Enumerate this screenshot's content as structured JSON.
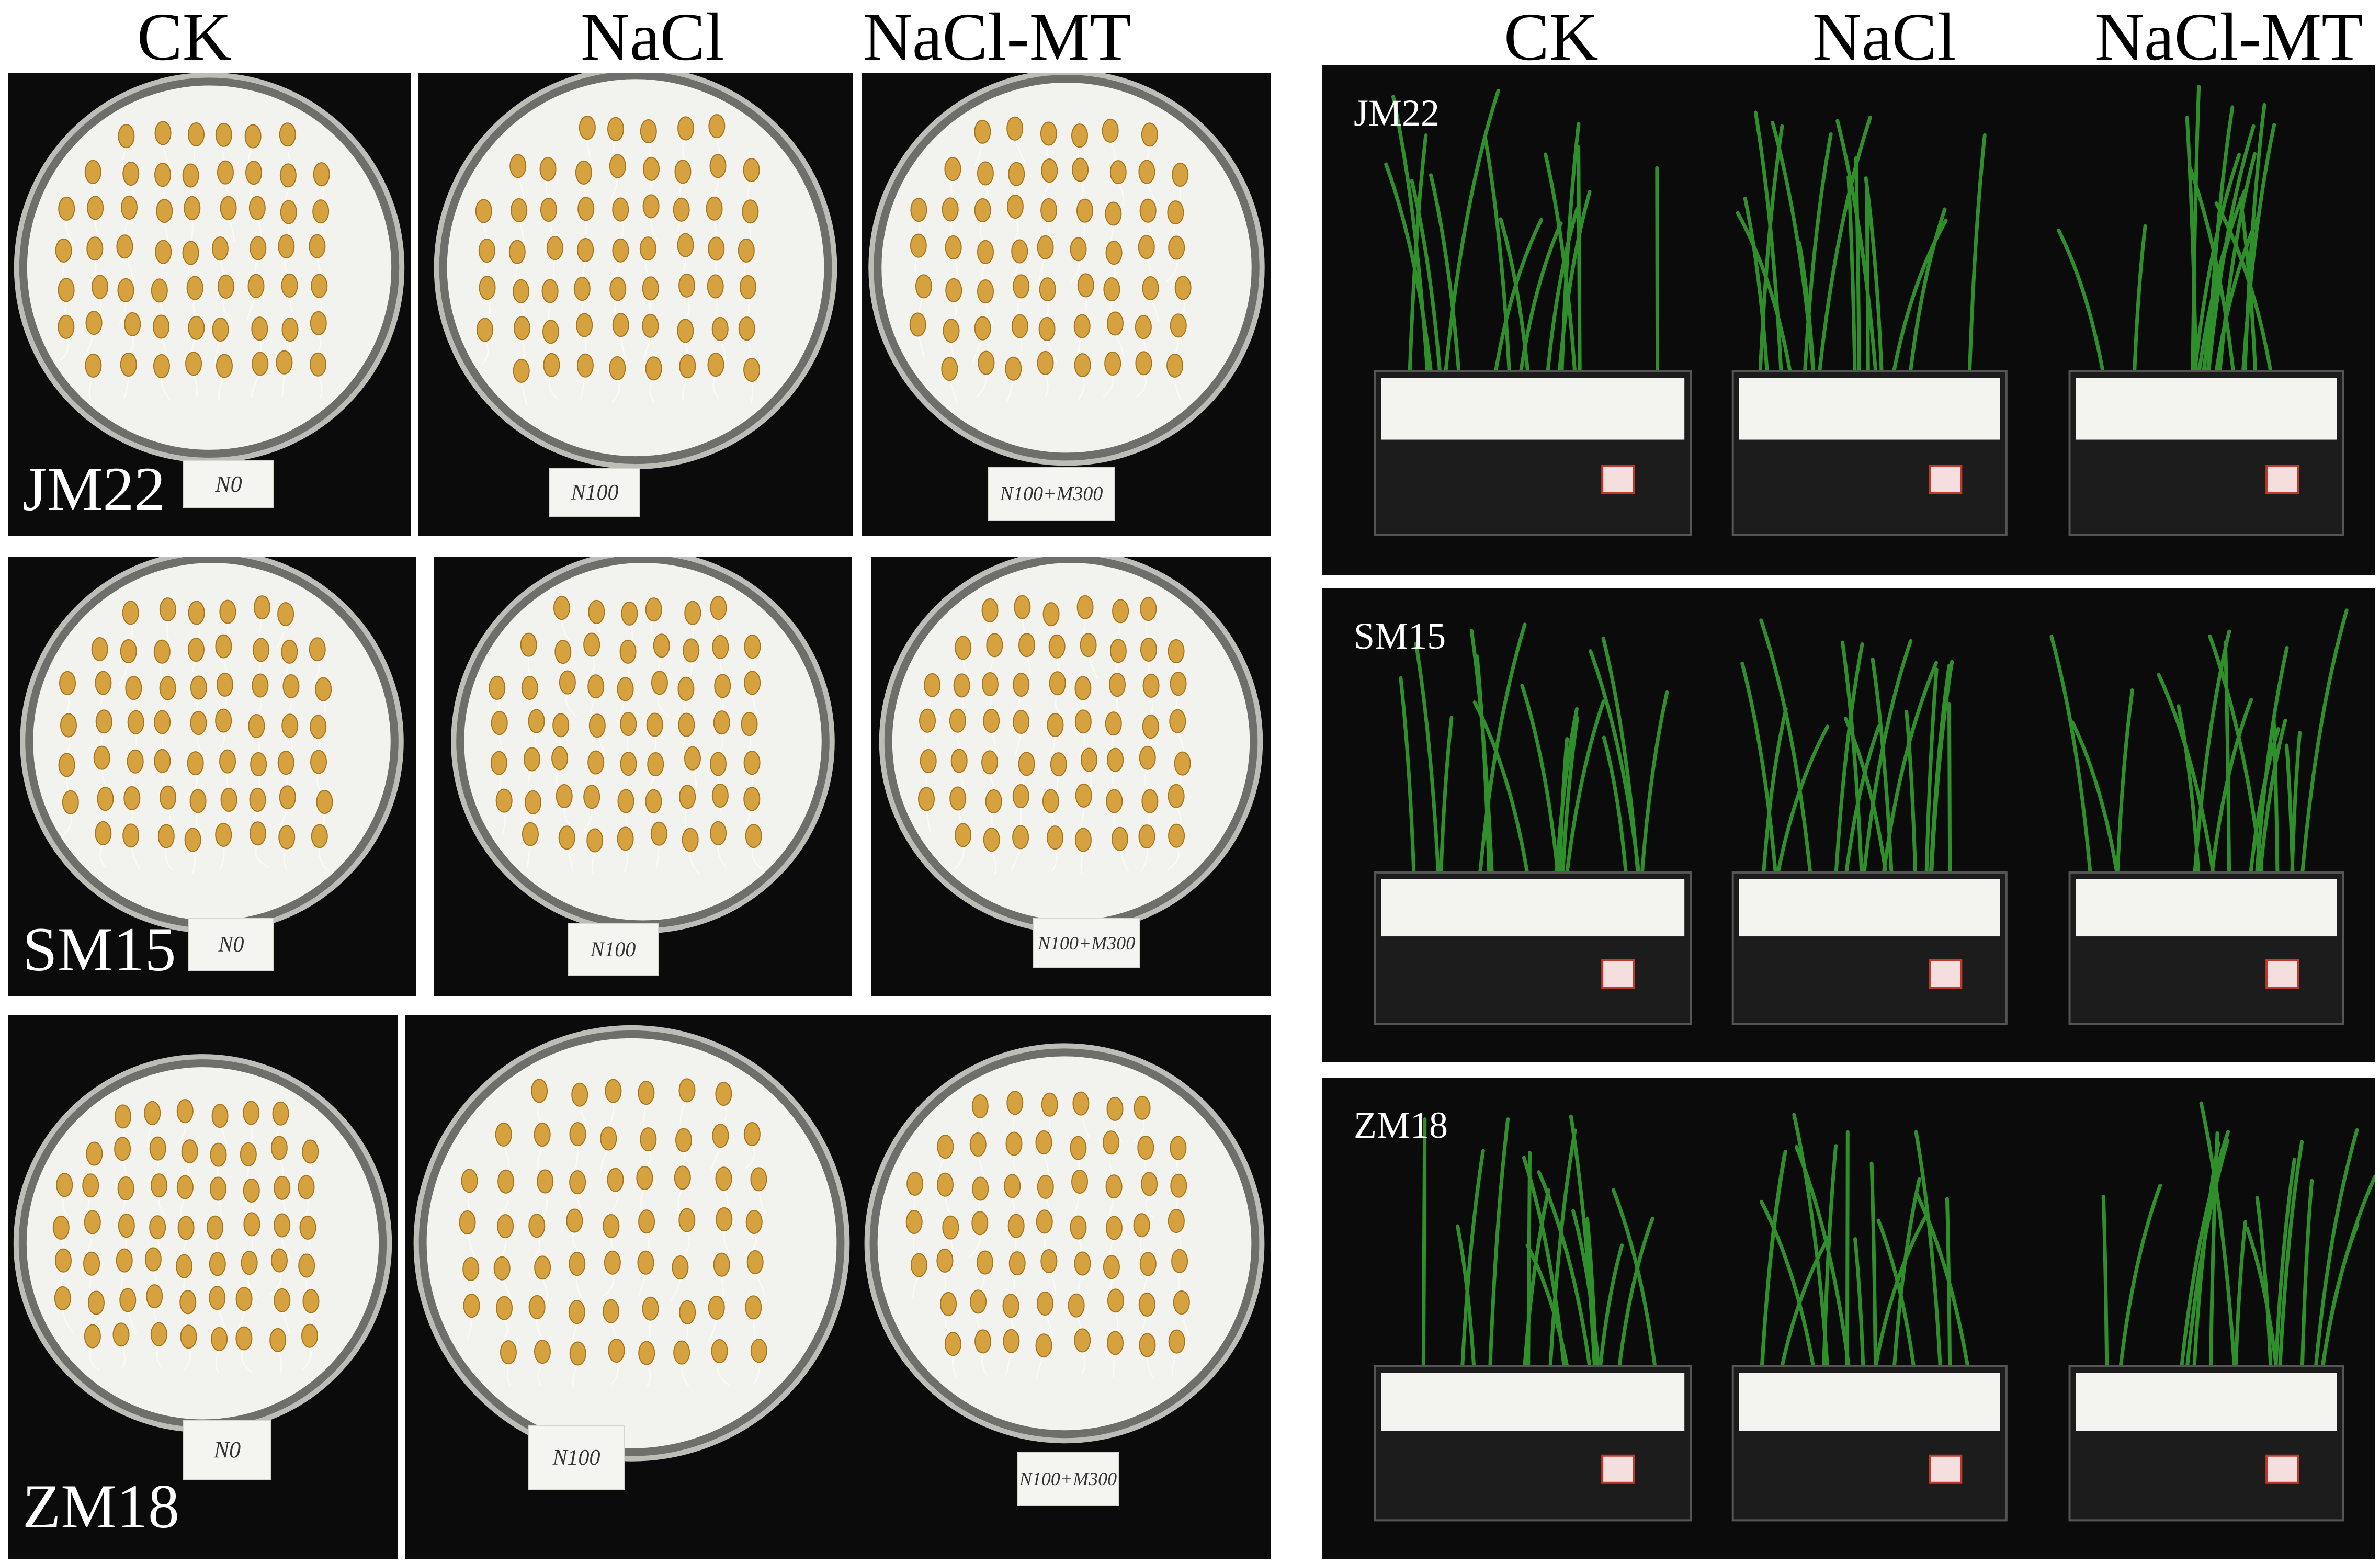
{
  "left_headers": [
    "CK",
    "NaCl",
    "NaCl-MT"
  ],
  "right_headers": [
    "CK",
    "NaCl",
    "NaCl-MT"
  ],
  "varieties": [
    "JM22",
    "SM15",
    "ZM18"
  ],
  "dish_tags": {
    "row1": [
      "N0",
      "N100",
      "N100+M300"
    ],
    "row2": [
      "N0",
      "N100",
      "N100+M300"
    ],
    "row3": [
      "N0",
      "N100",
      "N100+M300"
    ]
  },
  "right_panel_labels": [
    "JM22",
    "SM15",
    "ZM18"
  ],
  "colors": {
    "background": "#0b0b0b",
    "seed": "#d6a23f",
    "paper": "#f2f2ee",
    "leaf": "#2f8f2a",
    "foam": "#f3f3f0"
  }
}
